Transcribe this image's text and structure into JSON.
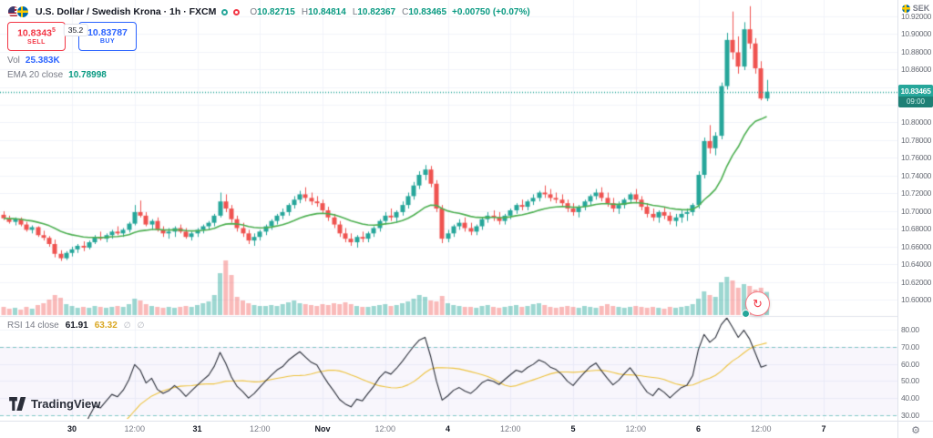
{
  "header": {
    "title": "U.S. Dollar / Swedish Krona · 1h · FXCM",
    "ohlc": [
      {
        "k": "O",
        "v": "10.82715"
      },
      {
        "k": "H",
        "v": "10.84814"
      },
      {
        "k": "L",
        "v": "10.82367"
      },
      {
        "k": "C",
        "v": "10.83465"
      }
    ],
    "change": "+0.00750 (+0.07%)",
    "vol_label": "Vol",
    "vol_value": "25.383K",
    "ema_label": "EMA 20 close",
    "ema_value": "10.78998"
  },
  "trade_widget": {
    "sell_price": "10.8343",
    "sell_sup": "5",
    "sell_label": "SELL",
    "spread": "35.2",
    "buy_price": "10.83787",
    "buy_label": "BUY"
  },
  "rsi_legend": {
    "label": "RSI 14 close",
    "value": "61.91",
    "ma_value": "63.32"
  },
  "price_badge": {
    "price": "10.83465",
    "countdown": "09:00"
  },
  "axis": {
    "currency": "SEK"
  },
  "footer": {
    "logo_text": "TradingView"
  },
  "chart_data": {
    "type": "candlestick",
    "title": "U.S. Dollar / Swedish Krona",
    "interval": "1h",
    "exchange": "FXCM",
    "current_price": 10.83465,
    "countdown": "09:00",
    "price_range": [
      10.584,
      10.938
    ],
    "price_axis_ticks": [
      10.92,
      10.9,
      10.88,
      10.86,
      10.84,
      10.82,
      10.8,
      10.78,
      10.76,
      10.74,
      10.72,
      10.7,
      10.68,
      10.66,
      10.64,
      10.62,
      10.6
    ],
    "rsi_axis_ticks": [
      80,
      70,
      60,
      50,
      40,
      30
    ],
    "rsi_bands": [
      70,
      30
    ],
    "ema_period": 20,
    "rsi_period": 14,
    "time_ticks": [
      {
        "i": 12,
        "label": "30",
        "major": true
      },
      {
        "i": 23,
        "label": "12:00",
        "major": false
      },
      {
        "i": 34,
        "label": "31",
        "major": true
      },
      {
        "i": 45,
        "label": "12:00",
        "major": false
      },
      {
        "i": 56,
        "label": "Nov",
        "major": true
      },
      {
        "i": 67,
        "label": "12:00",
        "major": false
      },
      {
        "i": 78,
        "label": "4",
        "major": true
      },
      {
        "i": 89,
        "label": "12:00",
        "major": false
      },
      {
        "i": 100,
        "label": "5",
        "major": true
      },
      {
        "i": 111,
        "label": "12:00",
        "major": false
      },
      {
        "i": 122,
        "label": "6",
        "major": true
      },
      {
        "i": 133,
        "label": "12:00",
        "major": false
      },
      {
        "i": 144,
        "label": "7",
        "major": true
      }
    ],
    "candles": [
      [
        10.696,
        10.7,
        10.69,
        10.692
      ],
      [
        10.692,
        10.695,
        10.686,
        10.688
      ],
      [
        10.688,
        10.693,
        10.684,
        10.691
      ],
      [
        10.691,
        10.693,
        10.683,
        10.685
      ],
      [
        10.685,
        10.688,
        10.677,
        10.679
      ],
      [
        10.679,
        10.684,
        10.675,
        10.682
      ],
      [
        10.682,
        10.683,
        10.671,
        10.673
      ],
      [
        10.673,
        10.678,
        10.667,
        10.67
      ],
      [
        10.67,
        10.672,
        10.66,
        10.663
      ],
      [
        10.663,
        10.668,
        10.648,
        10.652
      ],
      [
        10.652,
        10.656,
        10.644,
        10.647
      ],
      [
        10.647,
        10.655,
        10.645,
        10.653
      ],
      [
        10.653,
        10.66,
        10.649,
        10.657
      ],
      [
        10.657,
        10.663,
        10.653,
        10.661
      ],
      [
        10.661,
        10.666,
        10.655,
        10.659
      ],
      [
        10.659,
        10.667,
        10.657,
        10.665
      ],
      [
        10.665,
        10.673,
        10.663,
        10.671
      ],
      [
        10.671,
        10.677,
        10.667,
        10.669
      ],
      [
        10.669,
        10.675,
        10.665,
        10.673
      ],
      [
        10.673,
        10.679,
        10.669,
        10.677
      ],
      [
        10.677,
        10.683,
        10.673,
        10.675
      ],
      [
        10.675,
        10.681,
        10.671,
        10.679
      ],
      [
        10.679,
        10.688,
        10.676,
        10.686
      ],
      [
        10.686,
        10.707,
        10.684,
        10.699
      ],
      [
        10.699,
        10.712,
        10.693,
        10.695
      ],
      [
        10.695,
        10.699,
        10.683,
        10.685
      ],
      [
        10.685,
        10.691,
        10.679,
        10.689
      ],
      [
        10.689,
        10.693,
        10.677,
        10.679
      ],
      [
        10.679,
        10.683,
        10.671,
        10.675
      ],
      [
        10.675,
        10.681,
        10.669,
        10.677
      ],
      [
        10.677,
        10.683,
        10.671,
        10.681
      ],
      [
        10.681,
        10.685,
        10.675,
        10.677
      ],
      [
        10.677,
        10.681,
        10.669,
        10.671
      ],
      [
        10.671,
        10.677,
        10.667,
        10.675
      ],
      [
        10.675,
        10.681,
        10.671,
        10.679
      ],
      [
        10.679,
        10.685,
        10.675,
        10.683
      ],
      [
        10.683,
        10.689,
        10.679,
        10.687
      ],
      [
        10.687,
        10.697,
        10.683,
        10.695
      ],
      [
        10.695,
        10.721,
        10.693,
        10.711
      ],
      [
        10.711,
        10.719,
        10.699,
        10.703
      ],
      [
        10.703,
        10.707,
        10.687,
        10.691
      ],
      [
        10.691,
        10.695,
        10.677,
        10.681
      ],
      [
        10.681,
        10.687,
        10.671,
        10.675
      ],
      [
        10.675,
        10.679,
        10.663,
        10.667
      ],
      [
        10.667,
        10.675,
        10.661,
        10.671
      ],
      [
        10.671,
        10.679,
        10.667,
        10.677
      ],
      [
        10.677,
        10.685,
        10.673,
        10.683
      ],
      [
        10.683,
        10.691,
        10.679,
        10.689
      ],
      [
        10.689,
        10.697,
        10.685,
        10.695
      ],
      [
        10.695,
        10.703,
        10.691,
        10.699
      ],
      [
        10.699,
        10.709,
        10.695,
        10.707
      ],
      [
        10.707,
        10.717,
        10.703,
        10.713
      ],
      [
        10.713,
        10.723,
        10.709,
        10.719
      ],
      [
        10.719,
        10.727,
        10.711,
        10.715
      ],
      [
        10.715,
        10.721,
        10.707,
        10.711
      ],
      [
        10.711,
        10.717,
        10.705,
        10.709
      ],
      [
        10.709,
        10.713,
        10.697,
        10.701
      ],
      [
        10.701,
        10.705,
        10.689,
        10.693
      ],
      [
        10.693,
        10.697,
        10.681,
        10.685
      ],
      [
        10.685,
        10.689,
        10.671,
        10.675
      ],
      [
        10.675,
        10.681,
        10.665,
        10.669
      ],
      [
        10.669,
        10.675,
        10.661,
        10.665
      ],
      [
        10.665,
        10.673,
        10.659,
        10.671
      ],
      [
        10.671,
        10.677,
        10.665,
        10.669
      ],
      [
        10.669,
        10.677,
        10.665,
        10.675
      ],
      [
        10.675,
        10.683,
        10.671,
        10.681
      ],
      [
        10.681,
        10.691,
        10.677,
        10.689
      ],
      [
        10.689,
        10.699,
        10.685,
        10.695
      ],
      [
        10.695,
        10.703,
        10.689,
        10.693
      ],
      [
        10.693,
        10.701,
        10.687,
        10.699
      ],
      [
        10.699,
        10.711,
        10.695,
        10.707
      ],
      [
        10.707,
        10.721,
        10.703,
        10.717
      ],
      [
        10.717,
        10.733,
        10.713,
        10.729
      ],
      [
        10.729,
        10.745,
        10.725,
        10.741
      ],
      [
        10.741,
        10.752,
        10.735,
        10.747
      ],
      [
        10.747,
        10.751,
        10.727,
        10.731
      ],
      [
        10.731,
        10.735,
        10.699,
        10.703
      ],
      [
        10.703,
        10.707,
        10.664,
        10.669
      ],
      [
        10.669,
        10.679,
        10.665,
        10.675
      ],
      [
        10.675,
        10.685,
        10.671,
        10.683
      ],
      [
        10.683,
        10.691,
        10.679,
        10.687
      ],
      [
        10.687,
        10.693,
        10.677,
        10.681
      ],
      [
        10.681,
        10.687,
        10.673,
        10.677
      ],
      [
        10.677,
        10.685,
        10.673,
        10.683
      ],
      [
        10.683,
        10.693,
        10.679,
        10.691
      ],
      [
        10.691,
        10.699,
        10.687,
        10.695
      ],
      [
        10.695,
        10.701,
        10.689,
        10.693
      ],
      [
        10.693,
        10.699,
        10.685,
        10.689
      ],
      [
        10.689,
        10.697,
        10.685,
        10.695
      ],
      [
        10.695,
        10.703,
        10.691,
        10.701
      ],
      [
        10.701,
        10.709,
        10.697,
        10.707
      ],
      [
        10.707,
        10.713,
        10.701,
        10.705
      ],
      [
        10.705,
        10.713,
        10.701,
        10.711
      ],
      [
        10.711,
        10.719,
        10.707,
        10.715
      ],
      [
        10.715,
        10.723,
        10.711,
        10.721
      ],
      [
        10.721,
        10.729,
        10.715,
        10.719
      ],
      [
        10.719,
        10.725,
        10.711,
        10.715
      ],
      [
        10.715,
        10.721,
        10.709,
        10.713
      ],
      [
        10.713,
        10.719,
        10.705,
        10.709
      ],
      [
        10.709,
        10.713,
        10.699,
        10.703
      ],
      [
        10.703,
        10.709,
        10.695,
        10.699
      ],
      [
        10.699,
        10.707,
        10.693,
        10.705
      ],
      [
        10.705,
        10.713,
        10.701,
        10.711
      ],
      [
        10.711,
        10.719,
        10.707,
        10.717
      ],
      [
        10.717,
        10.725,
        10.713,
        10.721
      ],
      [
        10.721,
        10.727,
        10.711,
        10.715
      ],
      [
        10.715,
        10.721,
        10.705,
        10.709
      ],
      [
        10.709,
        10.715,
        10.699,
        10.703
      ],
      [
        10.703,
        10.711,
        10.697,
        10.707
      ],
      [
        10.707,
        10.715,
        10.703,
        10.713
      ],
      [
        10.713,
        10.721,
        10.709,
        10.719
      ],
      [
        10.719,
        10.725,
        10.709,
        10.713
      ],
      [
        10.713,
        10.717,
        10.701,
        10.705
      ],
      [
        10.705,
        10.709,
        10.693,
        10.697
      ],
      [
        10.697,
        10.703,
        10.689,
        10.693
      ],
      [
        10.693,
        10.701,
        10.687,
        10.699
      ],
      [
        10.699,
        10.705,
        10.691,
        10.695
      ],
      [
        10.695,
        10.699,
        10.685,
        10.689
      ],
      [
        10.689,
        10.697,
        10.683,
        10.693
      ],
      [
        10.693,
        10.701,
        10.687,
        10.697
      ],
      [
        10.697,
        10.703,
        10.689,
        10.699
      ],
      [
        10.699,
        10.709,
        10.695,
        10.707
      ],
      [
        10.707,
        10.745,
        10.703,
        10.741
      ],
      [
        10.741,
        10.783,
        10.737,
        10.779
      ],
      [
        10.779,
        10.797,
        10.765,
        10.771
      ],
      [
        10.771,
        10.789,
        10.763,
        10.785
      ],
      [
        10.785,
        10.845,
        10.781,
        10.841
      ],
      [
        10.841,
        10.901,
        10.837,
        10.893
      ],
      [
        10.893,
        10.925,
        10.871,
        10.879
      ],
      [
        10.879,
        10.897,
        10.855,
        10.863
      ],
      [
        10.863,
        10.913,
        10.859,
        10.905
      ],
      [
        10.905,
        10.931,
        10.883,
        10.889
      ],
      [
        10.889,
        10.895,
        10.855,
        10.861
      ],
      [
        10.861,
        10.869,
        10.825,
        10.827
      ],
      [
        10.827,
        10.848,
        10.824,
        10.83465
      ]
    ],
    "volumes_k": [
      9,
      7,
      8,
      6,
      9,
      7,
      11,
      13,
      17,
      22,
      19,
      12,
      10,
      8,
      9,
      8,
      10,
      9,
      8,
      9,
      10,
      9,
      12,
      18,
      16,
      12,
      10,
      9,
      8,
      9,
      8,
      9,
      10,
      9,
      11,
      13,
      15,
      22,
      46,
      60,
      44,
      20,
      16,
      13,
      11,
      10,
      10,
      11,
      10,
      12,
      14,
      16,
      13,
      12,
      11,
      10,
      12,
      11,
      13,
      12,
      14,
      12,
      10,
      9,
      9,
      10,
      11,
      12,
      10,
      11,
      13,
      15,
      18,
      22,
      20,
      16,
      15,
      21,
      13,
      11,
      10,
      9,
      9,
      8,
      10,
      11,
      9,
      8,
      9,
      10,
      11,
      9,
      10,
      12,
      13,
      11,
      9,
      8,
      9,
      10,
      9,
      8,
      10,
      9,
      8,
      10,
      12,
      10,
      9,
      8,
      9,
      10,
      9,
      8,
      9,
      8,
      7,
      9,
      8,
      9,
      10,
      12,
      18,
      26,
      22,
      20,
      36,
      42,
      38,
      30,
      34,
      32,
      28,
      30,
      25.4
    ],
    "colors": {
      "up": "#26a69a",
      "down": "#ef5350",
      "vol_up": "rgba(38,166,154,0.45)",
      "vol_down": "rgba(239,83,80,0.40)",
      "ema": "#4caf50",
      "rsi": "#2a2e39",
      "rsi_ma": "#edc23e",
      "rsi_band": "rgba(38,166,154,0.55)",
      "grid": "#f0f3fa",
      "accent": "#26a69a",
      "buy_blue": "#2962ff",
      "sell_red": "#f23645",
      "badge": "#26a69a"
    }
  }
}
